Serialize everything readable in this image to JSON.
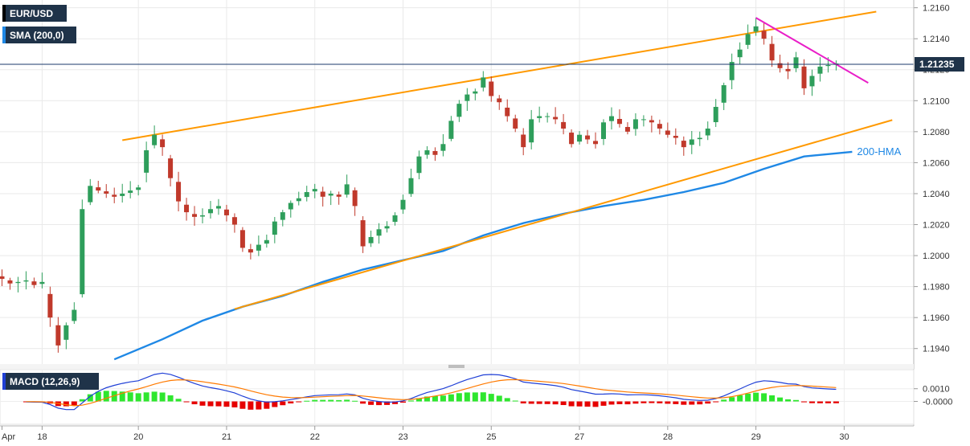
{
  "chart_data": [
    {
      "type": "candlestick",
      "symbol_label": "EUR/USD",
      "indicator_label": "SMA (200,0)",
      "ylim": [
        1.193,
        1.2165
      ],
      "y_ticks": [
        "1.2160",
        "1.2140",
        "1.2120",
        "1.2100",
        "1.2080",
        "1.2060",
        "1.2040",
        "1.2020",
        "1.2000",
        "1.1980",
        "1.1960",
        "1.1940"
      ],
      "y_tick_values": [
        1.216,
        1.214,
        1.212,
        1.21,
        1.208,
        1.206,
        1.204,
        1.202,
        1.2,
        1.198,
        1.196,
        1.194
      ],
      "x_ticks": [
        "Apr",
        "18",
        "20",
        "21",
        "22",
        "23",
        "25",
        "27",
        "28",
        "29",
        "30"
      ],
      "x_tick_positions": [
        0,
        5,
        17,
        28,
        39,
        50,
        61,
        72,
        83,
        94,
        105
      ],
      "current_price": "1.21235",
      "current_price_value": 1.21235,
      "colors": {
        "up": "#2e9e5b",
        "down": "#c0392b",
        "hma": "#1f88e5",
        "channel": "#ff9900",
        "trendline": "#e91ec8",
        "price_line": "#1b3a6b"
      },
      "channel_upper": [
        [
          15,
          1.20745
        ],
        [
          109,
          1.21575
        ]
      ],
      "channel_lower": [
        [
          29,
          1.19655
        ],
        [
          111,
          1.20875
        ]
      ],
      "trendline": [
        [
          94,
          1.21535
        ],
        [
          108,
          1.21115
        ]
      ],
      "hma_label": "200-HMA",
      "hma": [
        [
          14,
          1.1933
        ],
        [
          20,
          1.1946
        ],
        [
          25,
          1.1958
        ],
        [
          30,
          1.1967
        ],
        [
          35,
          1.1974
        ],
        [
          40,
          1.1983
        ],
        [
          45,
          1.1991
        ],
        [
          50,
          1.1997
        ],
        [
          55,
          1.2003
        ],
        [
          60,
          1.2013
        ],
        [
          65,
          1.2021
        ],
        [
          70,
          1.2027
        ],
        [
          75,
          1.2032
        ],
        [
          80,
          1.2036
        ],
        [
          85,
          1.2041
        ],
        [
          90,
          1.2047
        ],
        [
          95,
          1.2056
        ],
        [
          100,
          1.2064
        ],
        [
          106,
          1.2067
        ]
      ],
      "close": [
        1.1985,
        1.1982,
        1.1983,
        1.1984,
        1.1981,
        1.1983,
        1.196,
        1.1942,
        1.1955,
        1.1965,
        1.203,
        1.2045,
        1.2042,
        1.204,
        1.2038,
        1.204,
        1.2042,
        1.2044,
        1.2068,
        1.2078,
        1.207,
        1.205,
        1.2035,
        1.2028,
        1.2025,
        1.2026,
        1.203,
        1.2032,
        1.2026,
        1.202,
        1.2005,
        1.2002,
        1.2007,
        1.201,
        1.2022,
        1.2028,
        1.2034,
        1.2037,
        1.2041,
        1.2043,
        1.2038,
        1.204,
        1.2038,
        1.2046,
        1.2032,
        1.2006,
        1.2012,
        1.2017,
        1.2019,
        1.2026,
        1.2036,
        1.205,
        1.2064,
        1.2068,
        1.2065,
        1.2072,
        1.2087,
        1.2098,
        1.2104,
        1.2106,
        1.2115,
        1.2103,
        1.2099,
        1.209,
        1.2082,
        1.207,
        1.2088,
        1.209,
        1.209,
        1.2088,
        1.2082,
        1.2072,
        1.2078,
        1.2075,
        1.2072,
        1.2086,
        1.209,
        1.2085,
        1.208,
        1.2088,
        1.2088,
        1.2086,
        1.2082,
        1.2078,
        1.2076,
        1.207,
        1.2075,
        1.2076,
        1.2082,
        1.2096,
        1.211,
        1.2125,
        1.2133,
        1.2143,
        1.2148,
        1.214,
        1.2126,
        1.2121,
        1.2119,
        1.2128,
        1.2108,
        1.2116,
        1.2122,
        1.2123,
        1.2124
      ],
      "macd_label": "MACD (12,26,9)",
      "macd_ylim": [
        -0.0018,
        0.0025
      ],
      "macd_ticks": [
        "0.0010",
        "-0.0000"
      ],
      "macd_tick_values": [
        0.001,
        0.0
      ],
      "macd_hist_colors": {
        "positive": "#2ee62e",
        "negative": "#e60000"
      },
      "macd_line_colors": {
        "macd": "#1f3fd6",
        "signal": "#ff7a00"
      }
    }
  ]
}
